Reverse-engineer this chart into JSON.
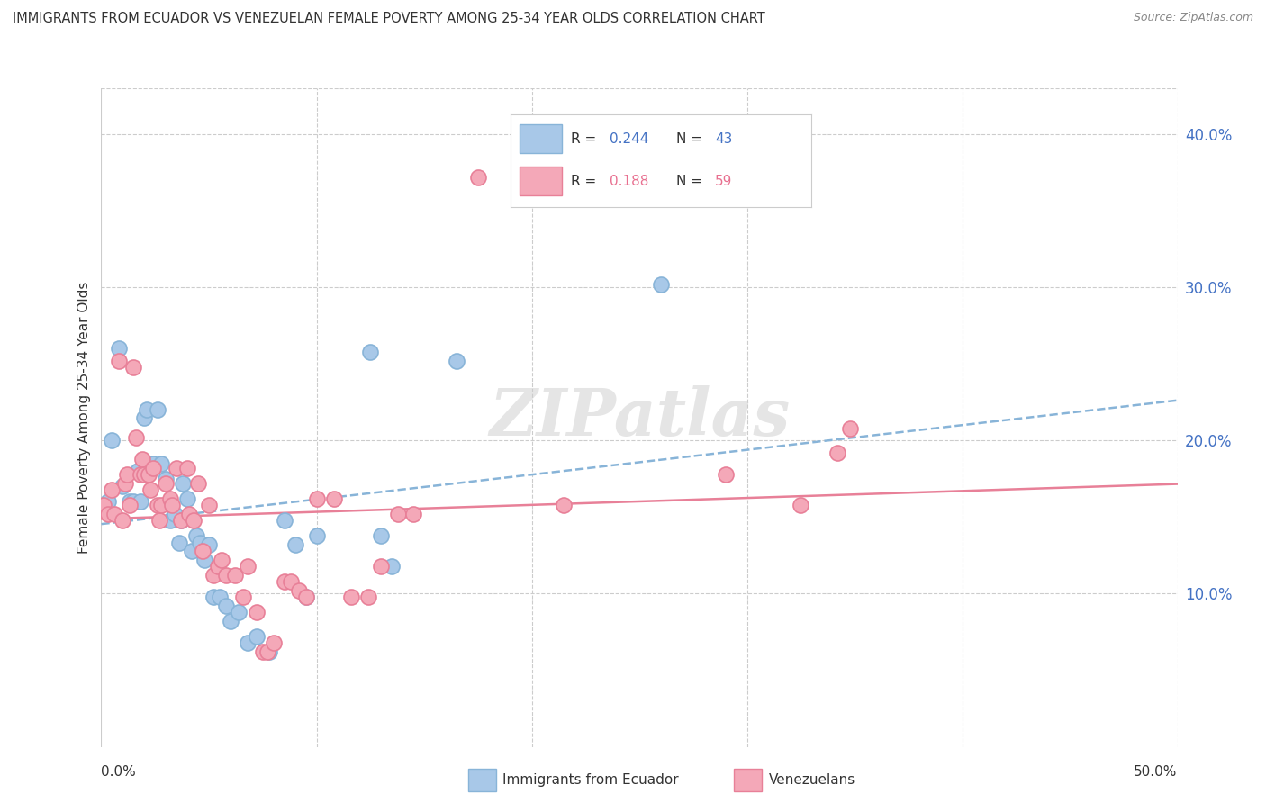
{
  "title": "IMMIGRANTS FROM ECUADOR VS VENEZUELAN FEMALE POVERTY AMONG 25-34 YEAR OLDS CORRELATION CHART",
  "source": "Source: ZipAtlas.com",
  "ylabel": "Female Poverty Among 25-34 Year Olds",
  "ytick_labels": [
    "10.0%",
    "20.0%",
    "30.0%",
    "40.0%"
  ],
  "ytick_values": [
    0.1,
    0.2,
    0.3,
    0.4
  ],
  "xlim": [
    0.0,
    0.5
  ],
  "ylim": [
    0.0,
    0.43
  ],
  "color_ecuador": "#a8c8e8",
  "color_venezuela": "#f4a8b8",
  "border_ecuador": "#88b4d8",
  "border_venezuela": "#e88098",
  "line_ecuador": "#88b4d8",
  "line_venezuela": "#e88098",
  "watermark": "ZIPatlas",
  "ecuador_R": "0.244",
  "ecuador_N": "43",
  "venezuela_R": "0.188",
  "venezuela_N": "59",
  "ecuador_points": [
    [
      0.003,
      0.16
    ],
    [
      0.005,
      0.2
    ],
    [
      0.008,
      0.26
    ],
    [
      0.01,
      0.17
    ],
    [
      0.013,
      0.16
    ],
    [
      0.015,
      0.16
    ],
    [
      0.017,
      0.18
    ],
    [
      0.018,
      0.16
    ],
    [
      0.02,
      0.215
    ],
    [
      0.021,
      0.22
    ],
    [
      0.022,
      0.18
    ],
    [
      0.024,
      0.185
    ],
    [
      0.026,
      0.22
    ],
    [
      0.028,
      0.185
    ],
    [
      0.03,
      0.175
    ],
    [
      0.032,
      0.148
    ],
    [
      0.034,
      0.152
    ],
    [
      0.036,
      0.133
    ],
    [
      0.037,
      0.148
    ],
    [
      0.038,
      0.172
    ],
    [
      0.04,
      0.162
    ],
    [
      0.042,
      0.128
    ],
    [
      0.044,
      0.138
    ],
    [
      0.046,
      0.133
    ],
    [
      0.048,
      0.122
    ],
    [
      0.05,
      0.132
    ],
    [
      0.052,
      0.098
    ],
    [
      0.055,
      0.098
    ],
    [
      0.058,
      0.092
    ],
    [
      0.06,
      0.082
    ],
    [
      0.064,
      0.088
    ],
    [
      0.068,
      0.068
    ],
    [
      0.072,
      0.072
    ],
    [
      0.078,
      0.062
    ],
    [
      0.085,
      0.148
    ],
    [
      0.09,
      0.132
    ],
    [
      0.095,
      0.098
    ],
    [
      0.1,
      0.138
    ],
    [
      0.125,
      0.258
    ],
    [
      0.13,
      0.138
    ],
    [
      0.135,
      0.118
    ],
    [
      0.165,
      0.252
    ],
    [
      0.26,
      0.302
    ]
  ],
  "venezuela_points": [
    [
      0.001,
      0.158
    ],
    [
      0.003,
      0.152
    ],
    [
      0.005,
      0.168
    ],
    [
      0.006,
      0.152
    ],
    [
      0.008,
      0.252
    ],
    [
      0.01,
      0.148
    ],
    [
      0.011,
      0.172
    ],
    [
      0.012,
      0.178
    ],
    [
      0.013,
      0.158
    ],
    [
      0.015,
      0.248
    ],
    [
      0.016,
      0.202
    ],
    [
      0.018,
      0.178
    ],
    [
      0.019,
      0.188
    ],
    [
      0.02,
      0.178
    ],
    [
      0.022,
      0.178
    ],
    [
      0.023,
      0.168
    ],
    [
      0.024,
      0.182
    ],
    [
      0.026,
      0.158
    ],
    [
      0.027,
      0.148
    ],
    [
      0.028,
      0.158
    ],
    [
      0.03,
      0.172
    ],
    [
      0.032,
      0.162
    ],
    [
      0.033,
      0.158
    ],
    [
      0.035,
      0.182
    ],
    [
      0.037,
      0.148
    ],
    [
      0.04,
      0.182
    ],
    [
      0.041,
      0.152
    ],
    [
      0.043,
      0.148
    ],
    [
      0.045,
      0.172
    ],
    [
      0.047,
      0.128
    ],
    [
      0.05,
      0.158
    ],
    [
      0.052,
      0.112
    ],
    [
      0.054,
      0.118
    ],
    [
      0.056,
      0.122
    ],
    [
      0.058,
      0.112
    ],
    [
      0.062,
      0.112
    ],
    [
      0.066,
      0.098
    ],
    [
      0.068,
      0.118
    ],
    [
      0.072,
      0.088
    ],
    [
      0.075,
      0.062
    ],
    [
      0.077,
      0.062
    ],
    [
      0.08,
      0.068
    ],
    [
      0.085,
      0.108
    ],
    [
      0.088,
      0.108
    ],
    [
      0.092,
      0.102
    ],
    [
      0.095,
      0.098
    ],
    [
      0.1,
      0.162
    ],
    [
      0.108,
      0.162
    ],
    [
      0.116,
      0.098
    ],
    [
      0.124,
      0.098
    ],
    [
      0.13,
      0.118
    ],
    [
      0.138,
      0.152
    ],
    [
      0.145,
      0.152
    ],
    [
      0.175,
      0.372
    ],
    [
      0.215,
      0.158
    ],
    [
      0.29,
      0.178
    ],
    [
      0.325,
      0.158
    ],
    [
      0.342,
      0.192
    ],
    [
      0.348,
      0.208
    ]
  ]
}
